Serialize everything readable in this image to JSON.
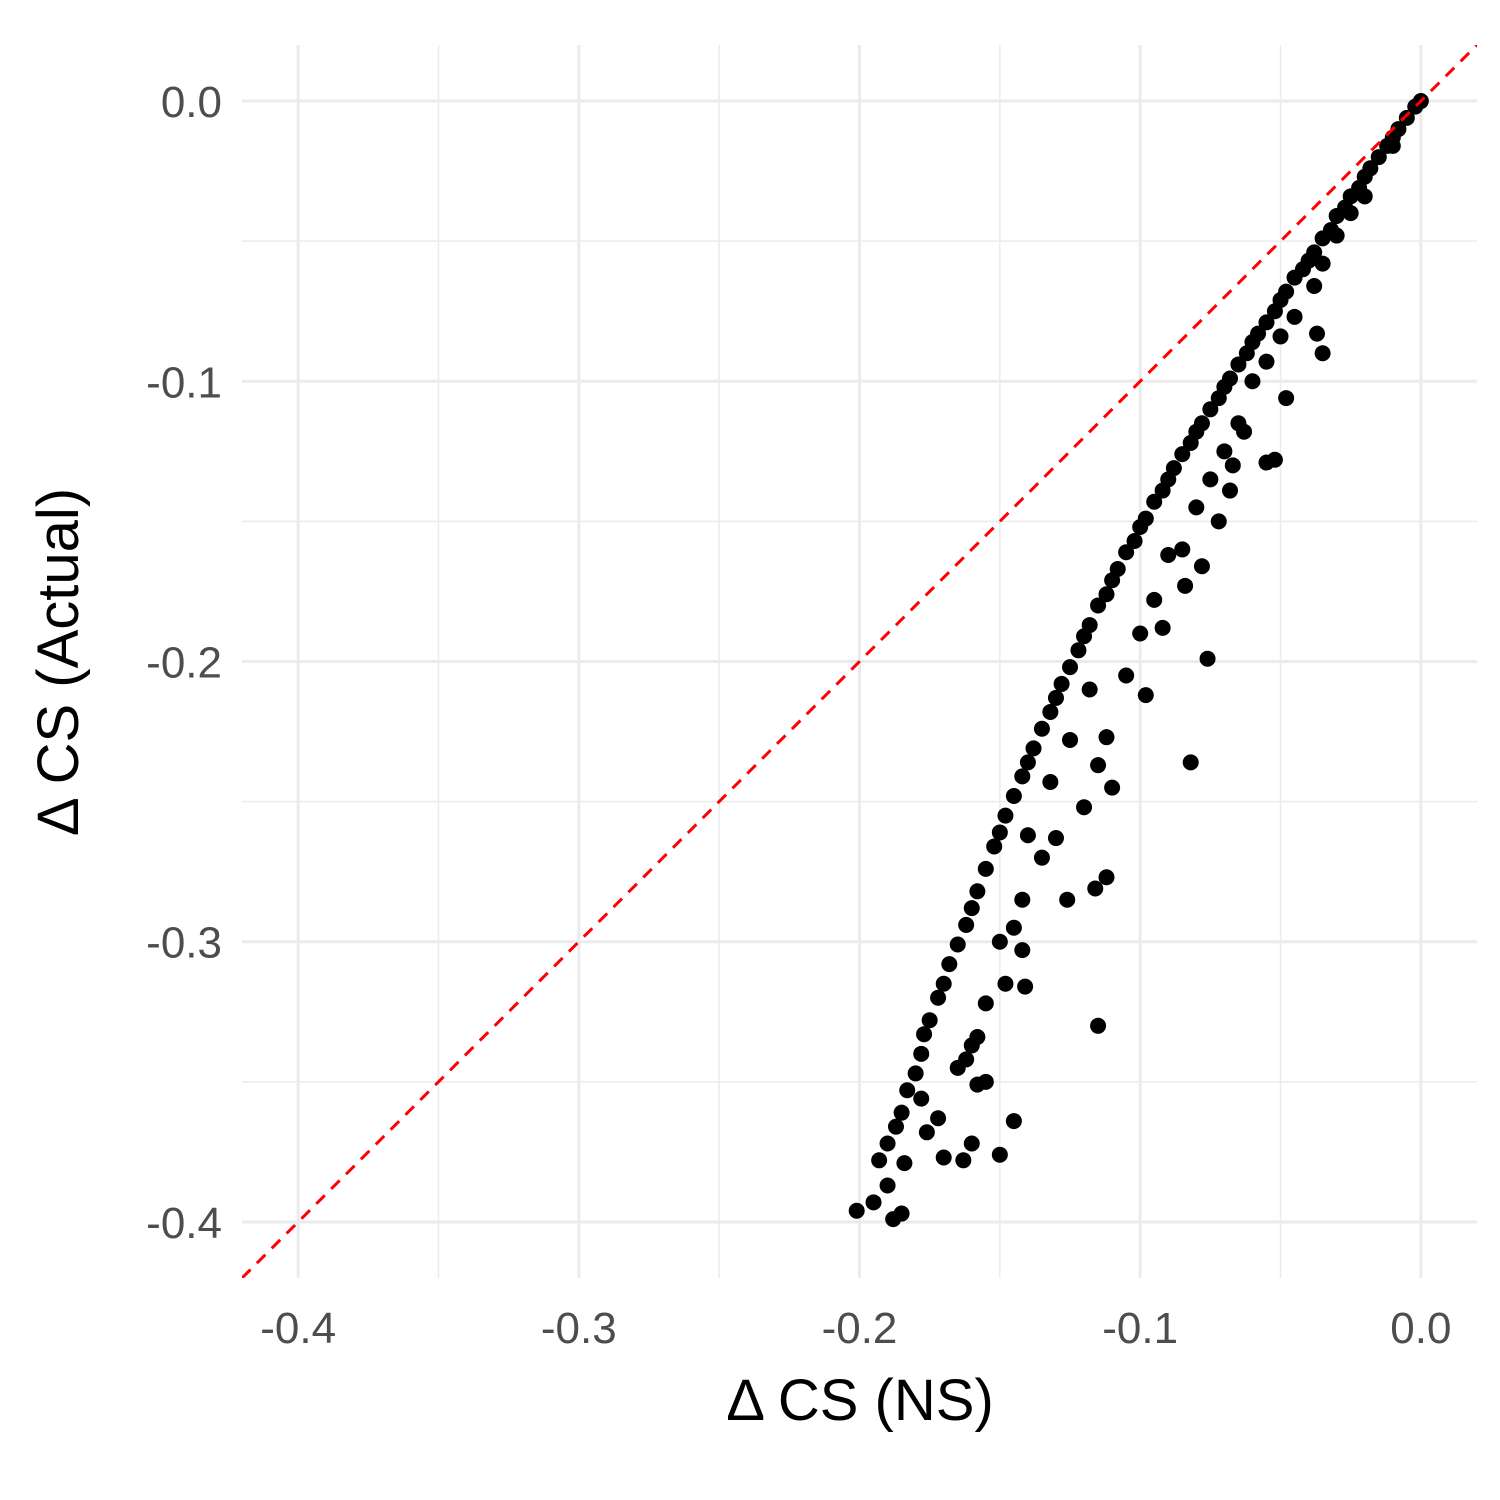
{
  "chart_data": {
    "type": "scatter",
    "x_label": "Δ CS (NS)",
    "y_label": "Δ CS (Actual)",
    "xlim": [
      -0.42,
      0.02
    ],
    "ylim": [
      -0.42,
      0.02
    ],
    "xticks": [
      -0.4,
      -0.3,
      -0.2,
      -0.1,
      {
        "value": 0,
        "label": "0.0"
      }
    ],
    "yticks": [
      -0.4,
      -0.3,
      -0.2,
      -0.1,
      {
        "value": 0,
        "label": "0.0"
      }
    ],
    "x_minor": [
      -0.35,
      -0.25,
      -0.15,
      -0.05
    ],
    "y_minor": [
      -0.35,
      -0.25,
      -0.15,
      -0.05
    ],
    "grid": true,
    "color": "#000000",
    "reference_line": {
      "slope": 1,
      "intercept": 0,
      "color": "#ff0000",
      "dashed": true
    },
    "x": [
      0,
      -0.002,
      -0.005,
      -0.008,
      -0.01,
      -0.012,
      -0.015,
      -0.018,
      -0.02,
      -0.022,
      -0.025,
      -0.027,
      -0.03,
      -0.032,
      -0.035,
      -0.038,
      -0.04,
      -0.042,
      -0.045,
      -0.048,
      -0.05,
      -0.052,
      -0.055,
      -0.058,
      -0.06,
      -0.062,
      -0.065,
      -0.068,
      -0.07,
      -0.072,
      -0.075,
      -0.078,
      -0.08,
      -0.082,
      -0.085,
      -0.088,
      -0.09,
      -0.092,
      -0.095,
      -0.098,
      -0.1,
      -0.102,
      -0.105,
      -0.108,
      -0.11,
      -0.112,
      -0.115,
      -0.118,
      -0.12,
      -0.122,
      -0.125,
      -0.128,
      -0.13,
      -0.132,
      -0.135,
      -0.138,
      -0.14,
      -0.142,
      -0.145,
      -0.148,
      -0.15,
      -0.152,
      -0.155,
      -0.158,
      -0.16,
      -0.162,
      -0.165,
      -0.168,
      -0.17,
      -0.172,
      -0.175,
      -0.177,
      -0.178,
      -0.18,
      -0.183,
      -0.185,
      -0.187,
      -0.19,
      -0.193,
      -0.195,
      -0.201,
      -0.19,
      -0.188,
      -0.185,
      -0.01,
      -0.02,
      -0.025,
      -0.03,
      -0.035,
      -0.038,
      -0.045,
      -0.05,
      -0.035,
      -0.037,
      -0.055,
      -0.06,
      -0.048,
      -0.052,
      -0.055,
      -0.065,
      -0.07,
      -0.063,
      -0.067,
      -0.075,
      -0.068,
      -0.072,
      -0.08,
      -0.085,
      -0.078,
      -0.084,
      -0.076,
      -0.082,
      -0.09,
      -0.095,
      -0.092,
      -0.1,
      -0.105,
      -0.098,
      -0.112,
      -0.115,
      -0.11,
      -0.118,
      -0.125,
      -0.12,
      -0.112,
      -0.116,
      -0.132,
      -0.14,
      -0.135,
      -0.142,
      -0.145,
      -0.15,
      -0.142,
      -0.148,
      -0.13,
      -0.126,
      -0.141,
      -0.115,
      -0.155,
      -0.158,
      -0.162,
      -0.158,
      -0.155,
      -0.165,
      -0.16,
      -0.145,
      -0.15,
      -0.16,
      -0.163,
      -0.17,
      -0.172,
      -0.178,
      -0.176,
      -0.184
    ],
    "values": [
      0,
      -0.002,
      -0.006,
      -0.01,
      -0.013,
      -0.016,
      -0.02,
      -0.024,
      -0.027,
      -0.031,
      -0.034,
      -0.038,
      -0.041,
      -0.046,
      -0.049,
      -0.054,
      -0.057,
      -0.06,
      -0.063,
      -0.068,
      -0.071,
      -0.075,
      -0.079,
      -0.083,
      -0.086,
      -0.09,
      -0.094,
      -0.099,
      -0.102,
      -0.106,
      -0.11,
      -0.115,
      -0.118,
      -0.122,
      -0.126,
      -0.131,
      -0.135,
      -0.139,
      -0.143,
      -0.149,
      -0.152,
      -0.157,
      -0.161,
      -0.167,
      -0.171,
      -0.176,
      -0.18,
      -0.187,
      -0.191,
      -0.196,
      -0.202,
      -0.208,
      -0.213,
      -0.218,
      -0.224,
      -0.231,
      -0.236,
      -0.241,
      -0.248,
      -0.255,
      -0.261,
      -0.266,
      -0.274,
      -0.282,
      -0.288,
      -0.294,
      -0.301,
      -0.308,
      -0.315,
      -0.32,
      -0.328,
      -0.333,
      -0.34,
      -0.347,
      -0.353,
      -0.361,
      -0.366,
      -0.372,
      -0.378,
      -0.393,
      -0.396,
      -0.387,
      -0.399,
      -0.397,
      -0.016,
      -0.034,
      -0.04,
      -0.048,
      -0.058,
      -0.066,
      -0.077,
      -0.084,
      -0.09,
      -0.083,
      -0.093,
      -0.1,
      -0.106,
      -0.128,
      -0.129,
      -0.115,
      -0.125,
      -0.118,
      -0.13,
      -0.135,
      -0.139,
      -0.15,
      -0.145,
      -0.16,
      -0.166,
      -0.173,
      -0.199,
      -0.236,
      -0.162,
      -0.178,
      -0.188,
      -0.19,
      -0.205,
      -0.212,
      -0.227,
      -0.237,
      -0.245,
      -0.21,
      -0.228,
      -0.252,
      -0.277,
      -0.281,
      -0.243,
      -0.262,
      -0.27,
      -0.285,
      -0.295,
      -0.3,
      -0.303,
      -0.315,
      -0.263,
      -0.285,
      -0.316,
      -0.33,
      -0.322,
      -0.334,
      -0.342,
      -0.351,
      -0.35,
      -0.345,
      -0.337,
      -0.364,
      -0.376,
      -0.372,
      -0.378,
      -0.377,
      -0.363,
      -0.356,
      -0.368,
      -0.379
    ]
  }
}
